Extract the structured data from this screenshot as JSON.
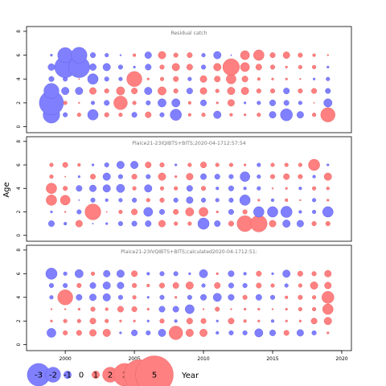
{
  "chart_data": {
    "type": "scatter",
    "xlabel": "Year",
    "ylabel": "Age",
    "x_ticks": [
      2000,
      2005,
      2010,
      2015,
      2020
    ],
    "y_ticks": [
      0,
      2,
      4,
      6,
      8
    ],
    "xlim": [
      1997.2,
      2020.7
    ],
    "ylim": [
      -0.5,
      8.4
    ],
    "years": [
      1999,
      2000,
      2001,
      2002,
      2003,
      2004,
      2005,
      2006,
      2007,
      2008,
      2009,
      2010,
      2011,
      2012,
      2013,
      2014,
      2015,
      2016,
      2017,
      2018,
      2019
    ],
    "ages": [
      1,
      2,
      3,
      4,
      5,
      6
    ],
    "colors": {
      "positive": "#ff8080",
      "negative": "#8080ff",
      "outline_positive": "#e05858",
      "outline_negative": "#5858e0"
    },
    "legend": {
      "items": [
        {
          "label": "-3",
          "value": -3
        },
        {
          "label": "-2",
          "value": -2
        },
        {
          "label": "-1",
          "value": -1
        },
        {
          "label": "0",
          "value": 0
        },
        {
          "label": "1",
          "value": 1
        },
        {
          "label": "2",
          "value": 2
        },
        {
          "label": "3",
          "value": 3
        },
        {
          "label": "4",
          "value": 4
        },
        {
          "label": "5",
          "value": 5
        }
      ]
    },
    "panels": [
      {
        "title": "Residual catch",
        "residuals": [
          [
            -2.2,
            -0.6,
            0.5,
            -1.4,
            0.6,
            0.5,
            -0.7,
            0.8,
            -0.6,
            -1.5,
            0.4,
            0.5,
            -1.0,
            0.4,
            0.3,
            0.5,
            -0.9,
            -1.6,
            -0.9,
            0.5,
            1.9
          ],
          [
            -3.2,
            0.5,
            0.2,
            -0.5,
            -0.7,
            1.8,
            0.5,
            -0.6,
            -1.1,
            -1.1,
            0.4,
            -0.8,
            0.3,
            0.9,
            -0.3,
            -0.5,
            -0.8,
            -0.7,
            -0.5,
            0.1,
            -1.1
          ],
          [
            -2.0,
            -1.0,
            -1.0,
            0.9,
            0.6,
            1.1,
            0.8,
            -1.0,
            1.1,
            0.6,
            -0.8,
            0.9,
            0.5,
            1.0,
            1.0,
            0.6,
            0.6,
            -0.8,
            0.6,
            0.7,
            -0.7
          ],
          [
            -0.7,
            -0.6,
            0.1,
            -1.4,
            -0.6,
            -0.5,
            2.0,
            0.3,
            0.5,
            0.7,
            -0.5,
            0.9,
            0.8,
            1.3,
            0.8,
            0.4,
            0.3,
            0.3,
            0.2,
            -0.3,
            -0.5
          ],
          [
            -0.9,
            -2.8,
            -2.8,
            -0.9,
            -1.0,
            -0.6,
            -0.3,
            -0.8,
            0.6,
            1.0,
            0.8,
            -0.6,
            1.0,
            2.2,
            1.2,
            0.8,
            0.6,
            0.3,
            0.5,
            0.5,
            -0.3
          ],
          [
            -0.3,
            -2.0,
            -2.1,
            -0.7,
            -0.5,
            -0.2,
            0.4,
            -0.9,
            1.0,
            0.6,
            0.7,
            -0.5,
            -1.0,
            -0.1,
            1.2,
            1.4,
            0.7,
            0.9,
            0.6,
            0.4,
            0.2
          ]
        ]
      },
      {
        "title": "Plaice21-23IQIBTS+BITS;2020-04-1712:57:54",
        "residuals": [
          [
            -0.8,
            -0.4,
            0.9,
            -0.1,
            -0.3,
            -0.6,
            -0.7,
            -0.8,
            0.9,
            0.5,
            0.5,
            -1.5,
            -0.8,
            0.7,
            2.1,
            2.2,
            0.9,
            -1.0,
            -0.9,
            0.6,
            0.6
          ],
          [
            -0.3,
            0.2,
            -0.6,
            2.1,
            0.1,
            0.5,
            0.8,
            -1.2,
            -0.7,
            0.7,
            1.1,
            1.2,
            0.3,
            -0.7,
            0.6,
            -1.4,
            -1.4,
            -1.5,
            -0.4,
            -0.5,
            -1.4
          ],
          [
            1.4,
            1.3,
            -0.1,
            -0.6,
            -0.4,
            -0.5,
            -0.6,
            0.5,
            0.6,
            -0.6,
            -0.9,
            -0.6,
            -0.5,
            -0.6,
            -1.4,
            0.3,
            -0.4,
            0.4,
            0.2,
            -0.5,
            0.3
          ],
          [
            1.4,
            0.6,
            -0.8,
            -0.9,
            -1.0,
            -1.1,
            0.5,
            -1.0,
            0.5,
            0.5,
            -0.8,
            0.6,
            -0.4,
            -0.7,
            -0.4,
            -0.5,
            0.2,
            0.3,
            -0.4,
            0.5,
            0.4
          ],
          [
            0.5,
            0.1,
            -0.3,
            0.7,
            -1.0,
            -0.6,
            0.7,
            -0.6,
            1.0,
            0.3,
            0.9,
            -0.8,
            -0.7,
            -0.6,
            -1.3,
            -0.5,
            0.6,
            0.8,
            0.6,
            -0.4,
            1.0
          ],
          [
            0.5,
            0.7,
            0.4,
            -0.3,
            -0.6,
            -1.0,
            -1.0,
            0.8,
            0.6,
            -0.3,
            0.5,
            0.8,
            0.5,
            0.5,
            0.3,
            -0.5,
            0.5,
            0.5,
            0.5,
            1.5,
            -0.3
          ]
        ]
      },
      {
        "title": "Plaice21-23IVQIBTS+BITS;calculated2020-04-1712:51:",
        "residuals": [
          [
            -1.2,
            0.6,
            0.7,
            0.9,
            1.0,
            -0.3,
            -0.8,
            -0.6,
            -1.0,
            1.8,
            1.0,
            1.0,
            -0.4,
            -0.6,
            -0.6,
            -1.1,
            -0.8,
            0.7,
            -0.9,
            -0.6,
            0.3
          ],
          [
            0.3,
            0.5,
            0.5,
            0.8,
            0.5,
            0.3,
            0.3,
            -0.3,
            0.6,
            -0.4,
            0.8,
            0.7,
            -0.3,
            0.8,
            0.4,
            0.3,
            -0.4,
            0.3,
            0.3,
            0.8,
            1.0
          ],
          [
            0.2,
            0.2,
            0.3,
            0.6,
            0.4,
            0.8,
            0.7,
            0.3,
            -0.8,
            -0.8,
            -1.2,
            0.2,
            0.6,
            0.2,
            0.3,
            0.3,
            0.2,
            0.3,
            0.5,
            0.5,
            1.4
          ],
          [
            -0.5,
            2.0,
            -0.8,
            -0.9,
            -1.0,
            -0.6,
            0.5,
            -0.3,
            -0.6,
            0.3,
            -0.6,
            -0.8,
            -1.1,
            -0.8,
            0.6,
            -0.8,
            -0.6,
            0.4,
            0.6,
            0.5,
            1.6
          ],
          [
            -0.6,
            -0.6,
            0.6,
            -0.8,
            -1.0,
            -0.9,
            0.6,
            0.4,
            0.7,
            0.8,
            1.0,
            -0.5,
            0.8,
            -0.7,
            -0.6,
            0.7,
            0.5,
            -0.5,
            0.5,
            1.0,
            0.9
          ],
          [
            -1.5,
            -0.5,
            -1.1,
            0.5,
            -0.9,
            -1.0,
            0.8,
            -0.4,
            -0.6,
            -0.6,
            -0.3,
            -1.1,
            0.3,
            -0.8,
            -0.4,
            0.7,
            -0.3,
            -1.0,
            0.7,
            0.6,
            0.9
          ]
        ]
      }
    ]
  }
}
